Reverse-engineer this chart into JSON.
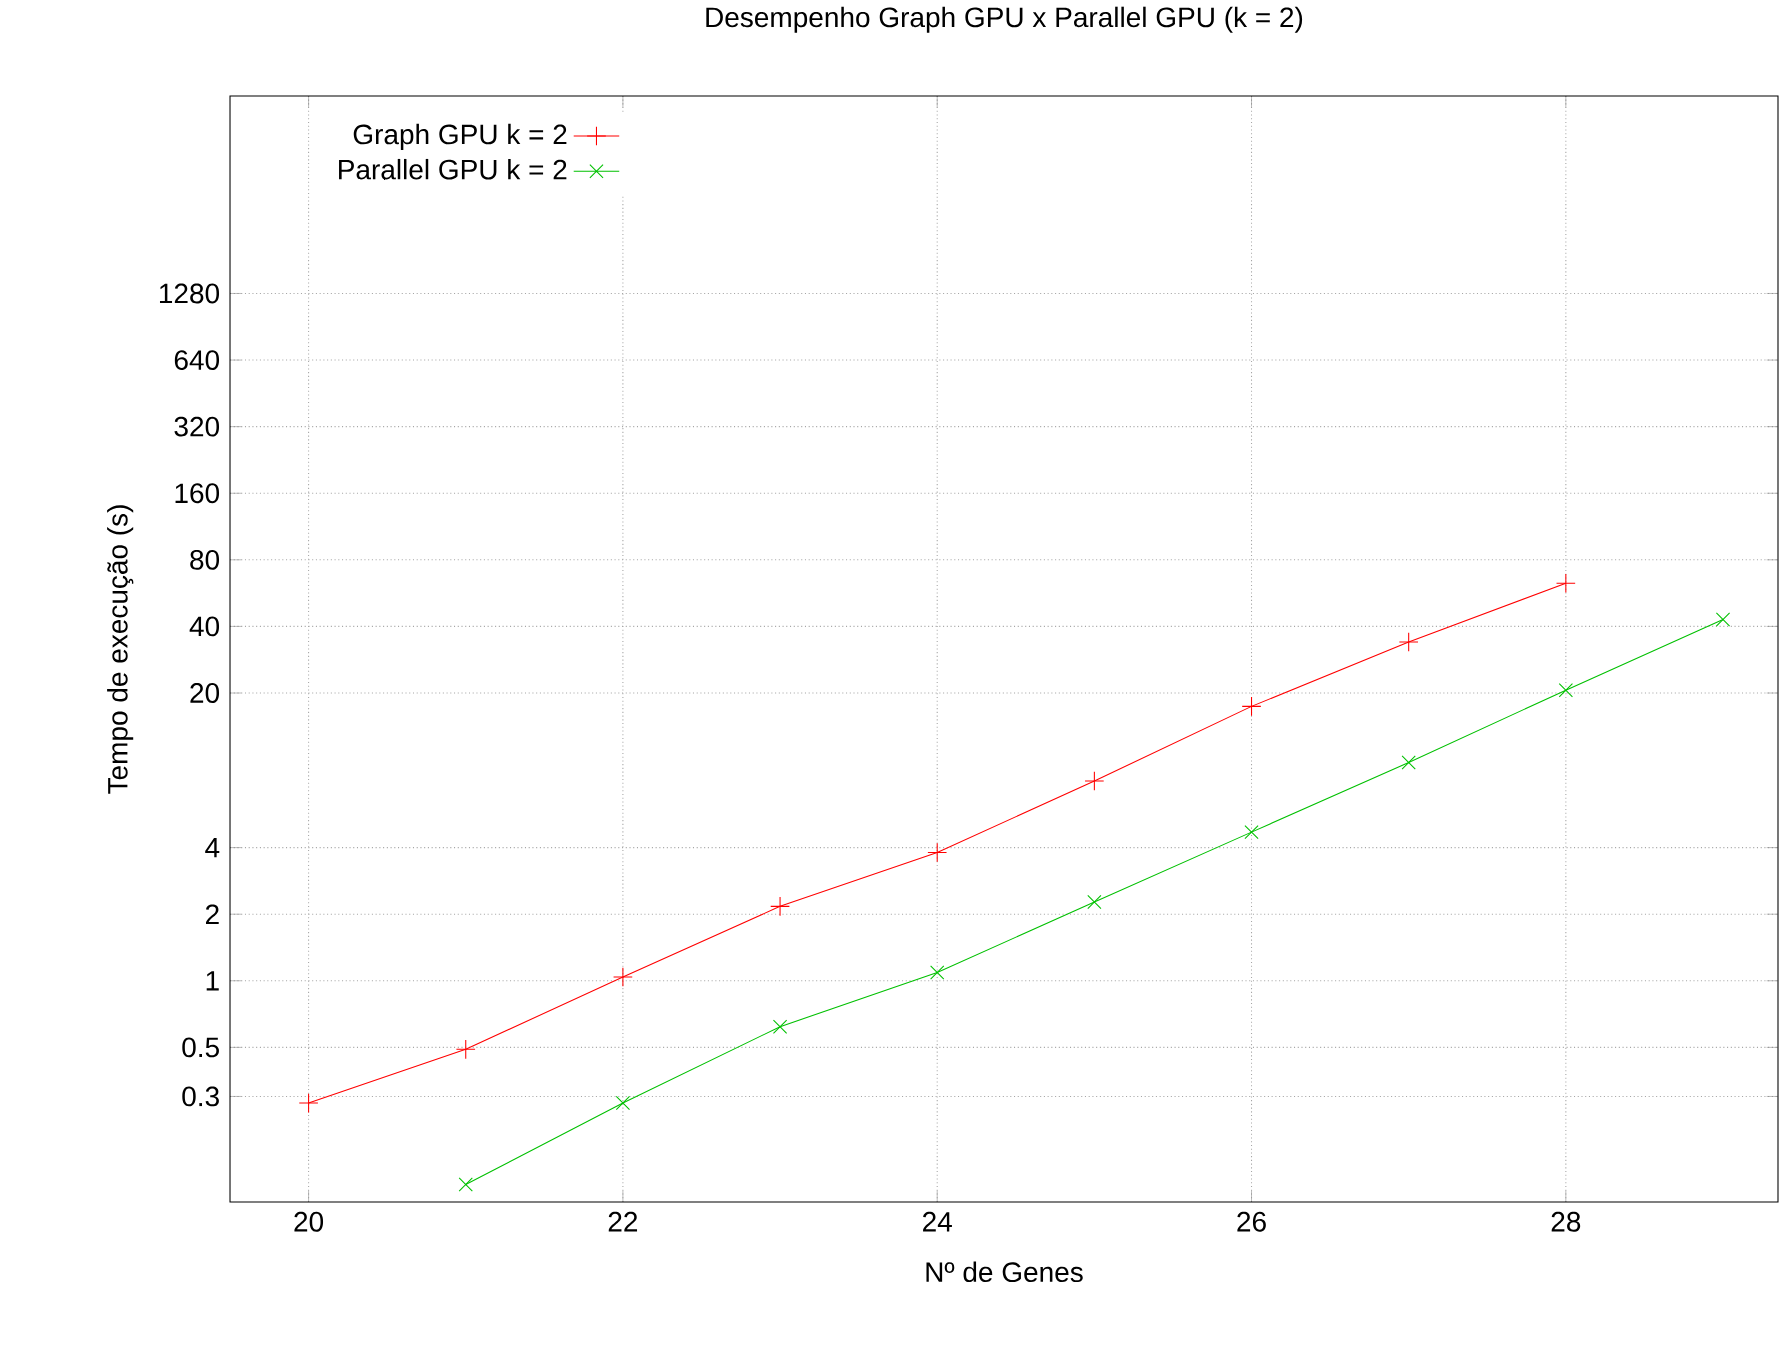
{
  "chart_data": {
    "type": "line",
    "title": "Desempenho Graph GPU x Parallel GPU (k = 2)",
    "xlabel": "Nº de Genes",
    "ylabel": "Tempo de execução (s)",
    "x": [
      20,
      21,
      22,
      23,
      24,
      25,
      26,
      27,
      28,
      29
    ],
    "series": [
      {
        "name": "Graph GPU k = 2",
        "color": "#ff0000",
        "marker": "plus",
        "values": [
          0.28,
          0.49,
          1.04,
          2.17,
          3.8,
          8,
          17.4,
          34,
          62.7,
          null
        ]
      },
      {
        "name": "Parallel GPU k = 2",
        "color": "#00c000",
        "marker": "cross",
        "values": [
          null,
          0.12,
          0.28,
          0.62,
          1.09,
          2.27,
          4.7,
          9.7,
          20.6,
          43
        ]
      }
    ],
    "log": "y",
    "xlim": [
      19.5,
      29.35
    ],
    "ylim": [
      0.1,
      10000
    ],
    "xticks": [
      20,
      22,
      24,
      26,
      28
    ],
    "yticks": [
      0.3,
      0.5,
      1,
      2,
      4,
      20,
      40,
      80,
      160,
      320,
      640,
      1280
    ],
    "grid": true,
    "legend": "top left",
    "line_style": "solid"
  }
}
